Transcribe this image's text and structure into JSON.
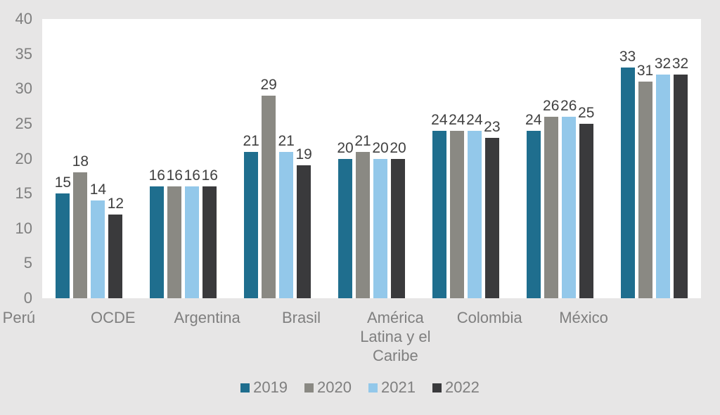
{
  "figure": {
    "background_color": "#e7e6e6",
    "plot_background_color": "#ffffff",
    "axis_text_color": "#7f7f7f",
    "data_label_color": "#404040"
  },
  "chart_data": {
    "type": "bar",
    "title": "",
    "xlabel": "",
    "ylabel": "",
    "categories": [
      "Perú",
      "OCDE",
      "Argentina",
      "Brasil",
      "América\nLatina y el\nCaribe",
      "Colombia",
      "México"
    ],
    "series": [
      {
        "name": "2019",
        "color": "#1f6e8e",
        "values": [
          15,
          16,
          21,
          20,
          24,
          24,
          33
        ]
      },
      {
        "name": "2020",
        "color": "#8a8983",
        "values": [
          18,
          16,
          29,
          21,
          24,
          26,
          31
        ]
      },
      {
        "name": "2021",
        "color": "#93c8ea",
        "values": [
          14,
          16,
          21,
          20,
          24,
          26,
          32
        ]
      },
      {
        "name": "2022",
        "color": "#3a3a3c",
        "values": [
          12,
          16,
          19,
          20,
          23,
          25,
          32
        ]
      }
    ],
    "ylim": [
      0,
      40
    ],
    "ytick_step": 5,
    "yticks": [
      0,
      5,
      10,
      15,
      20,
      25,
      30,
      35,
      40
    ],
    "grid": false,
    "data_labels": true,
    "legend_position": "bottom"
  }
}
